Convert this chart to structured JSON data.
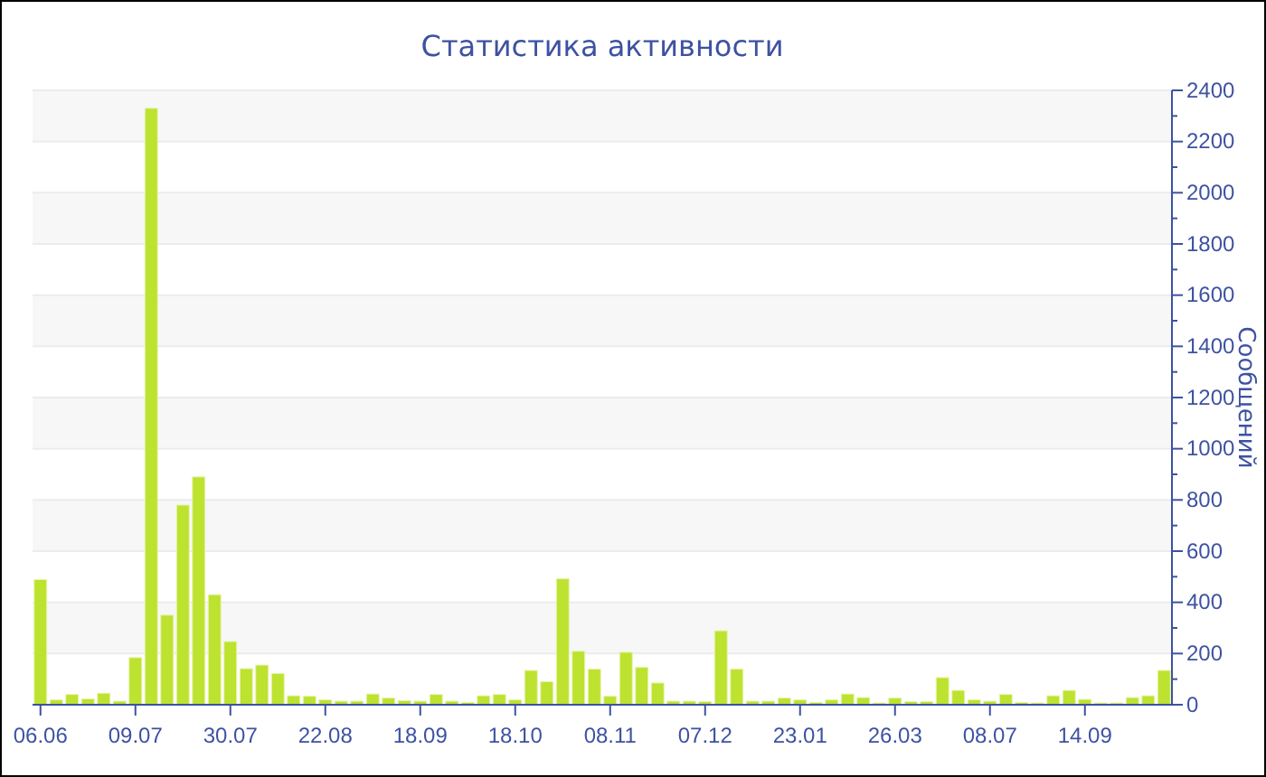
{
  "chart_data": {
    "type": "bar",
    "title": "Статистика активности",
    "y2label": "Сообщений",
    "categories": [
      "06.06",
      null,
      null,
      null,
      null,
      null,
      "09.07",
      null,
      null,
      null,
      null,
      null,
      "30.07",
      null,
      null,
      null,
      null,
      null,
      "22.08",
      null,
      null,
      null,
      null,
      null,
      "18.09",
      null,
      null,
      null,
      null,
      null,
      "18.10",
      null,
      null,
      null,
      null,
      null,
      "08.11",
      null,
      null,
      null,
      null,
      null,
      "07.12",
      null,
      null,
      null,
      null,
      null,
      "23.01",
      null,
      null,
      null,
      null,
      null,
      "26.03",
      null,
      null,
      null,
      null,
      null,
      "08.07",
      null,
      null,
      null,
      null,
      null,
      "14.09",
      null,
      null,
      null,
      null,
      null
    ],
    "series": [
      {
        "color": "#bde22f",
        "axis": "y2",
        "values": [
          489,
          19,
          40,
          23,
          45,
          14,
          184,
          2330,
          350,
          780,
          890,
          430,
          247,
          141,
          155,
          122,
          35,
          33,
          19,
          14,
          14,
          42,
          26,
          16,
          14,
          40,
          14,
          9,
          35,
          40,
          19,
          134,
          90,
          492,
          209,
          139,
          33,
          205,
          146,
          85,
          14,
          14,
          12,
          289,
          139,
          14,
          14,
          26,
          19,
          9,
          19,
          42,
          28,
          7,
          26,
          12,
          12,
          106,
          56,
          19,
          14,
          40,
          9,
          7,
          35,
          56,
          21,
          7,
          7,
          28,
          35,
          134
        ]
      }
    ],
    "y2lim": [
      0,
      2400
    ],
    "y2ticks": [
      0,
      200,
      400,
      600,
      800,
      1000,
      1200,
      1400,
      1600,
      1800,
      2000,
      2200,
      2400
    ],
    "grid": "y"
  }
}
